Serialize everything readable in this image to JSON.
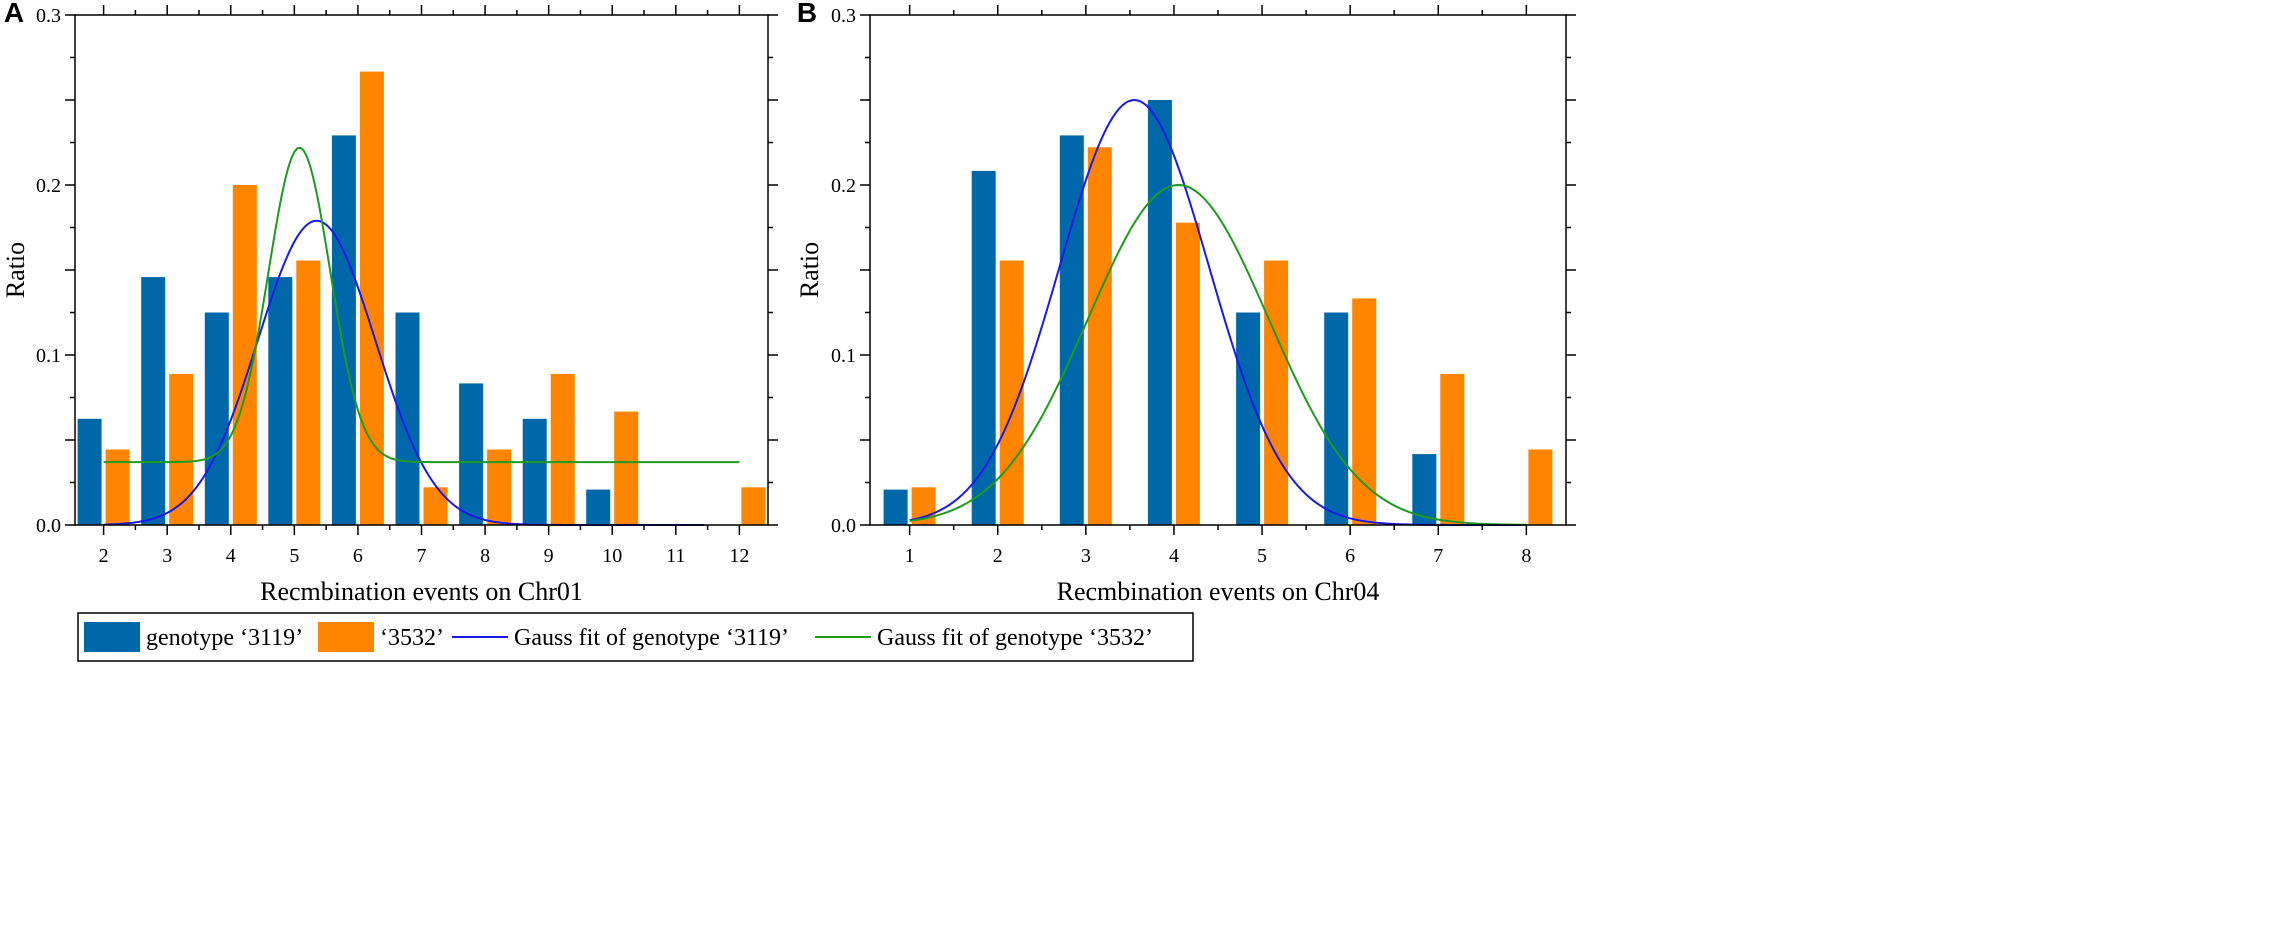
{
  "colors": {
    "genotype_3119": "#0068AA",
    "genotype_3532": "#FF8400",
    "gauss_3119": "#1A1AE6",
    "gauss_3532": "#1E9A1E",
    "axis": "#000000"
  },
  "legend": {
    "items": [
      {
        "kind": "bar",
        "label": "genotype ‘3119’",
        "color_key": "genotype_3119"
      },
      {
        "kind": "bar",
        "label": "‘3532’",
        "color_key": "genotype_3532"
      },
      {
        "kind": "line",
        "label": "Gauss fit of genotype ‘3119’",
        "color_key": "gauss_3119"
      },
      {
        "kind": "line",
        "label": "Gauss fit of genotype ‘3532’",
        "color_key": "gauss_3532"
      }
    ]
  },
  "chart_data": [
    {
      "panel_label": "A",
      "type": "bar",
      "xlabel": "Recmbination events on Chr01",
      "ylabel": "Ratio",
      "xlim": [
        1.55,
        12.45
      ],
      "ylim": [
        0,
        0.3
      ],
      "x_ticks": [
        2,
        3,
        4,
        5,
        6,
        7,
        8,
        9,
        10,
        11,
        12
      ],
      "y_ticks": [
        0.0,
        0.1,
        0.2,
        0.3
      ],
      "y_tick_labels": [
        "0.0",
        "0.1",
        "0.2",
        "0.3"
      ],
      "series": [
        {
          "name": "genotype ‘3119’",
          "x": [
            2,
            3,
            4,
            5,
            6,
            7,
            8,
            9,
            10
          ],
          "values": [
            0.0625,
            0.1458,
            0.125,
            0.1458,
            0.2292,
            0.125,
            0.0833,
            0.0625,
            0.0208
          ]
        },
        {
          "name": "‘3532’",
          "x": [
            2,
            3,
            4,
            5,
            6,
            7,
            8,
            9,
            10,
            12
          ],
          "values": [
            0.0444,
            0.0889,
            0.2,
            0.1556,
            0.2667,
            0.0222,
            0.0444,
            0.0889,
            0.0667,
            0.0222
          ]
        }
      ],
      "fits": [
        {
          "name": "Gauss fit of genotype ‘3119’",
          "y0": 0.0,
          "A": 0.179,
          "xc": 5.35,
          "w": 1.85,
          "x_range": [
            2,
            11.45
          ]
        },
        {
          "name": "Gauss fit of genotype ‘3532’",
          "y0": 0.037,
          "A": 0.185,
          "xc": 5.08,
          "w": 0.97,
          "x_range": [
            2,
            12
          ]
        }
      ]
    },
    {
      "panel_label": "B",
      "type": "bar",
      "xlabel": "Recmbination events on Chr04",
      "ylabel": "Ratio",
      "xlim": [
        0.55,
        8.45
      ],
      "ylim": [
        0,
        0.3
      ],
      "x_ticks": [
        1,
        2,
        3,
        4,
        5,
        6,
        7,
        8
      ],
      "y_ticks": [
        0.0,
        0.1,
        0.2,
        0.3
      ],
      "y_tick_labels": [
        "0.0",
        "0.1",
        "0.2",
        "0.3"
      ],
      "series": [
        {
          "name": "genotype ‘3119’",
          "x": [
            1,
            2,
            3,
            4,
            5,
            6,
            7
          ],
          "values": [
            0.0208,
            0.2083,
            0.2292,
            0.25,
            0.125,
            0.125,
            0.0417
          ]
        },
        {
          "name": "‘3532’",
          "x": [
            1,
            2,
            3,
            4,
            5,
            6,
            7,
            8
          ],
          "values": [
            0.0222,
            0.1556,
            0.2222,
            0.1778,
            0.1556,
            0.1333,
            0.0889,
            0.0444
          ]
        }
      ],
      "fits": [
        {
          "name": "Gauss fit of genotype ‘3119’",
          "y0": 0.0,
          "A": 0.25,
          "xc": 3.55,
          "w": 1.7,
          "x_range": [
            1,
            8
          ]
        },
        {
          "name": "Gauss fit of genotype ‘3532’",
          "y0": 0.0,
          "A": 0.2,
          "xc": 4.05,
          "w": 2.05,
          "x_range": [
            1,
            8
          ]
        }
      ]
    }
  ]
}
